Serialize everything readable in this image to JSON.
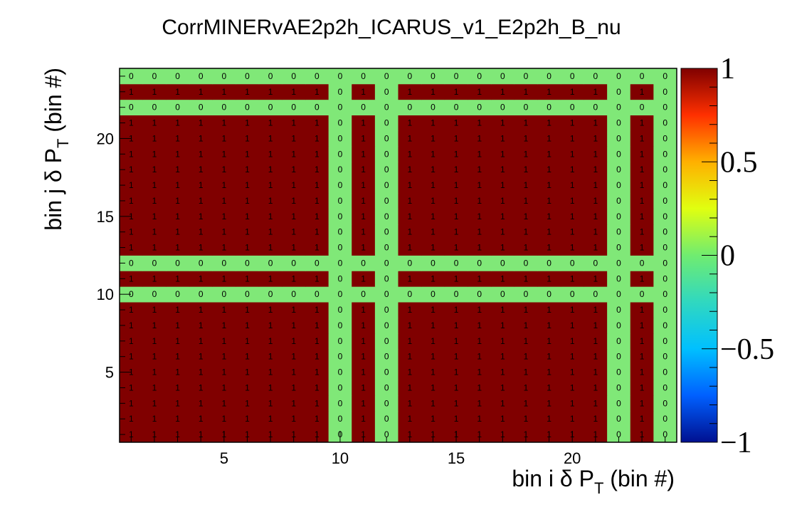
{
  "chart_data": {
    "type": "heatmap",
    "title": "CorrMINERvAE2p2h_ICARUS_v1_E2p2h_B_nu",
    "xlabel": {
      "pre": "bin i ",
      "sym": "δ",
      "main": " P",
      "sub": "T",
      "post": " (bin #)"
    },
    "ylabel": {
      "pre": "bin j ",
      "sym": "δ",
      "main": " P",
      "sub": "T",
      "post": " (bin #)"
    },
    "n_bins": 24,
    "xlim": [
      0.5,
      24.5
    ],
    "ylim": [
      0.5,
      24.5
    ],
    "x_ticks": [
      5,
      10,
      15,
      20
    ],
    "y_ticks": [
      5,
      10,
      15,
      20
    ],
    "zlim": [
      -1,
      1
    ],
    "z_ticks": [
      "1",
      "0.5",
      "0",
      "−0.5",
      "−1"
    ],
    "zero_bins": [
      10,
      12,
      22,
      24
    ],
    "values": [
      [
        1,
        1,
        1,
        1,
        1,
        1,
        1,
        1,
        1,
        0,
        1,
        0,
        1,
        1,
        1,
        1,
        1,
        1,
        1,
        1,
        1,
        0,
        1,
        0
      ],
      [
        1,
        1,
        1,
        1,
        1,
        1,
        1,
        1,
        1,
        0,
        1,
        0,
        1,
        1,
        1,
        1,
        1,
        1,
        1,
        1,
        1,
        0,
        1,
        0
      ],
      [
        1,
        1,
        1,
        1,
        1,
        1,
        1,
        1,
        1,
        0,
        1,
        0,
        1,
        1,
        1,
        1,
        1,
        1,
        1,
        1,
        1,
        0,
        1,
        0
      ],
      [
        1,
        1,
        1,
        1,
        1,
        1,
        1,
        1,
        1,
        0,
        1,
        0,
        1,
        1,
        1,
        1,
        1,
        1,
        1,
        1,
        1,
        0,
        1,
        0
      ],
      [
        1,
        1,
        1,
        1,
        1,
        1,
        1,
        1,
        1,
        0,
        1,
        0,
        1,
        1,
        1,
        1,
        1,
        1,
        1,
        1,
        1,
        0,
        1,
        0
      ],
      [
        1,
        1,
        1,
        1,
        1,
        1,
        1,
        1,
        1,
        0,
        1,
        0,
        1,
        1,
        1,
        1,
        1,
        1,
        1,
        1,
        1,
        0,
        1,
        0
      ],
      [
        1,
        1,
        1,
        1,
        1,
        1,
        1,
        1,
        1,
        0,
        1,
        0,
        1,
        1,
        1,
        1,
        1,
        1,
        1,
        1,
        1,
        0,
        1,
        0
      ],
      [
        1,
        1,
        1,
        1,
        1,
        1,
        1,
        1,
        1,
        0,
        1,
        0,
        1,
        1,
        1,
        1,
        1,
        1,
        1,
        1,
        1,
        0,
        1,
        0
      ],
      [
        1,
        1,
        1,
        1,
        1,
        1,
        1,
        1,
        1,
        0,
        1,
        0,
        1,
        1,
        1,
        1,
        1,
        1,
        1,
        1,
        1,
        0,
        1,
        0
      ],
      [
        0,
        0,
        0,
        0,
        0,
        0,
        0,
        0,
        0,
        0,
        0,
        0,
        0,
        0,
        0,
        0,
        0,
        0,
        0,
        0,
        0,
        0,
        0,
        0
      ],
      [
        1,
        1,
        1,
        1,
        1,
        1,
        1,
        1,
        1,
        0,
        1,
        0,
        1,
        1,
        1,
        1,
        1,
        1,
        1,
        1,
        1,
        0,
        1,
        0
      ],
      [
        0,
        0,
        0,
        0,
        0,
        0,
        0,
        0,
        0,
        0,
        0,
        0,
        0,
        0,
        0,
        0,
        0,
        0,
        0,
        0,
        0,
        0,
        0,
        0
      ],
      [
        1,
        1,
        1,
        1,
        1,
        1,
        1,
        1,
        1,
        0,
        1,
        0,
        1,
        1,
        1,
        1,
        1,
        1,
        1,
        1,
        1,
        0,
        1,
        0
      ],
      [
        1,
        1,
        1,
        1,
        1,
        1,
        1,
        1,
        1,
        0,
        1,
        0,
        1,
        1,
        1,
        1,
        1,
        1,
        1,
        1,
        1,
        0,
        1,
        0
      ],
      [
        1,
        1,
        1,
        1,
        1,
        1,
        1,
        1,
        1,
        0,
        1,
        0,
        1,
        1,
        1,
        1,
        1,
        1,
        1,
        1,
        1,
        0,
        1,
        0
      ],
      [
        1,
        1,
        1,
        1,
        1,
        1,
        1,
        1,
        1,
        0,
        1,
        0,
        1,
        1,
        1,
        1,
        1,
        1,
        1,
        1,
        1,
        0,
        1,
        0
      ],
      [
        1,
        1,
        1,
        1,
        1,
        1,
        1,
        1,
        1,
        0,
        1,
        0,
        1,
        1,
        1,
        1,
        1,
        1,
        1,
        1,
        1,
        0,
        1,
        0
      ],
      [
        1,
        1,
        1,
        1,
        1,
        1,
        1,
        1,
        1,
        0,
        1,
        0,
        1,
        1,
        1,
        1,
        1,
        1,
        1,
        1,
        1,
        0,
        1,
        0
      ],
      [
        1,
        1,
        1,
        1,
        1,
        1,
        1,
        1,
        1,
        0,
        1,
        0,
        1,
        1,
        1,
        1,
        1,
        1,
        1,
        1,
        1,
        0,
        1,
        0
      ],
      [
        1,
        1,
        1,
        1,
        1,
        1,
        1,
        1,
        1,
        0,
        1,
        0,
        1,
        1,
        1,
        1,
        1,
        1,
        1,
        1,
        1,
        0,
        1,
        0
      ],
      [
        1,
        1,
        1,
        1,
        1,
        1,
        1,
        1,
        1,
        0,
        1,
        0,
        1,
        1,
        1,
        1,
        1,
        1,
        1,
        1,
        1,
        0,
        1,
        0
      ],
      [
        0,
        0,
        0,
        0,
        0,
        0,
        0,
        0,
        0,
        0,
        0,
        0,
        0,
        0,
        0,
        0,
        0,
        0,
        0,
        0,
        0,
        0,
        0,
        0
      ],
      [
        1,
        1,
        1,
        1,
        1,
        1,
        1,
        1,
        1,
        0,
        1,
        0,
        1,
        1,
        1,
        1,
        1,
        1,
        1,
        1,
        1,
        0,
        1,
        0
      ],
      [
        0,
        0,
        0,
        0,
        0,
        0,
        0,
        0,
        0,
        0,
        0,
        0,
        0,
        0,
        0,
        0,
        0,
        0,
        0,
        0,
        0,
        0,
        0,
        0
      ]
    ],
    "colors": {
      "one": "#800000",
      "zero": "#80e878",
      "frame": "#000000"
    },
    "colormap": [
      "#800000",
      "#ff3000",
      "#ffb000",
      "#e0ff10",
      "#70ec70",
      "#30d8c0",
      "#00c0ff",
      "#0060ff",
      "#001090"
    ],
    "grid": false,
    "legend": "colorbar-right"
  }
}
